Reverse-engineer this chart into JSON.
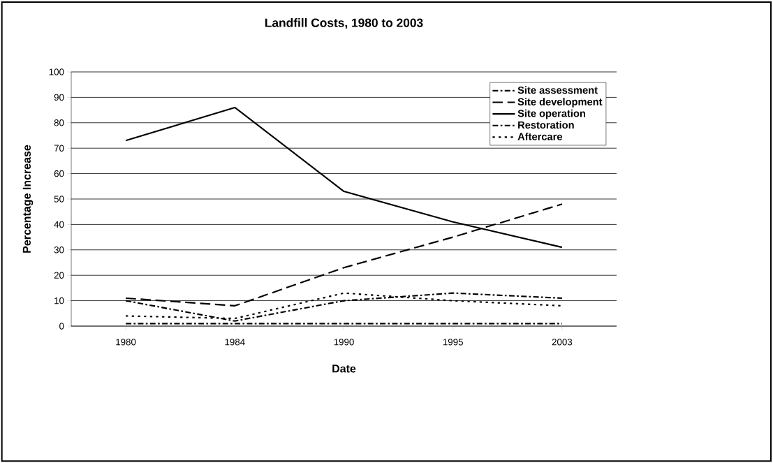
{
  "chart_data": {
    "type": "line",
    "title": "Landfill Costs, 1980 to 2003",
    "xlabel": "Date",
    "ylabel": "Percentage Increase",
    "categories": [
      "1980",
      "1984",
      "1990",
      "1995",
      "2003"
    ],
    "series": [
      {
        "name": "Site assessment",
        "color": "#000000",
        "line_style": "dashdot",
        "values": [
          1,
          1,
          1,
          1,
          1
        ]
      },
      {
        "name": "Site development",
        "color": "#000000",
        "line_style": "dashed",
        "values": [
          11,
          8,
          23,
          35,
          48
        ]
      },
      {
        "name": "Site operation",
        "color": "#000000",
        "line_style": "solid",
        "values": [
          73,
          86,
          53,
          41,
          31
        ]
      },
      {
        "name": "Restoration",
        "color": "#000000",
        "line_style": "dashdot",
        "values": [
          10,
          2,
          10,
          13,
          11
        ]
      },
      {
        "name": "Aftercare",
        "color": "#000000",
        "line_style": "dotted",
        "values": [
          4,
          3,
          13,
          10,
          8
        ]
      }
    ],
    "ylim": [
      0,
      100
    ],
    "yticks": [
      0,
      10,
      20,
      30,
      40,
      50,
      60,
      70,
      80,
      90,
      100
    ],
    "grid": "y",
    "legend": "top right",
    "marker": "none"
  }
}
